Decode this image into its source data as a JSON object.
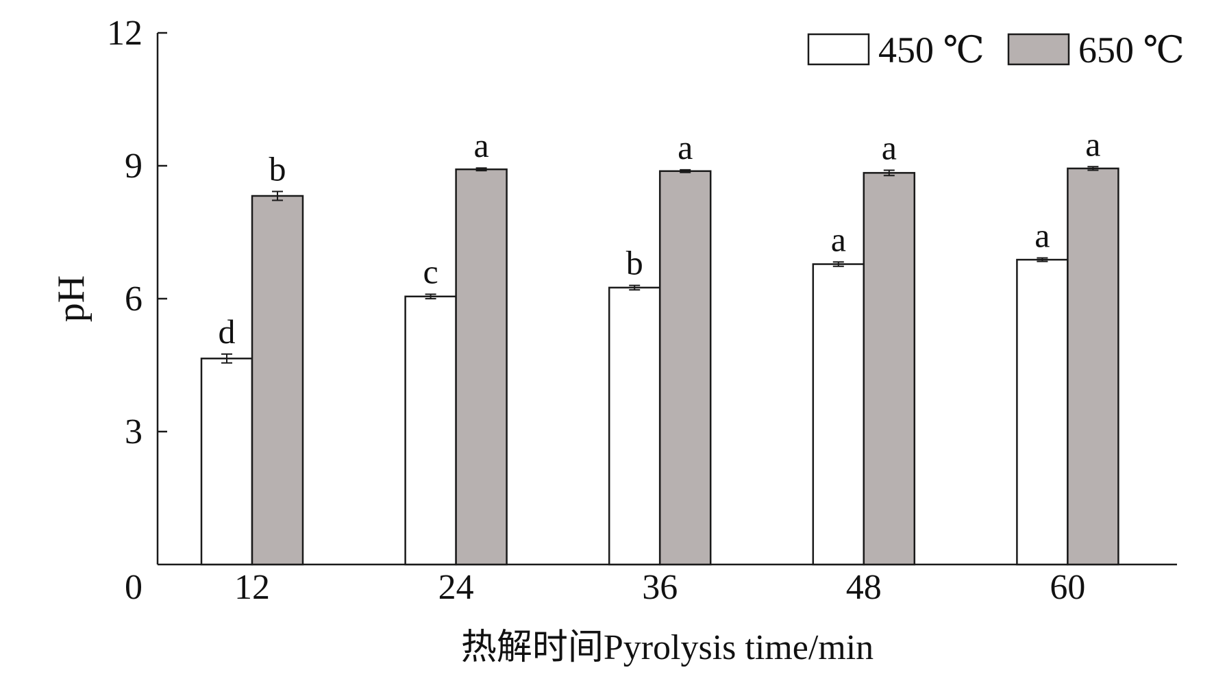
{
  "chart_data": {
    "type": "bar",
    "categories": [
      "12",
      "24",
      "36",
      "48",
      "60"
    ],
    "series": [
      {
        "name": "450 ℃",
        "values": [
          4.65,
          6.05,
          6.25,
          6.78,
          6.88
        ],
        "errors": [
          0.1,
          0.05,
          0.05,
          0.05,
          0.04
        ],
        "letters": [
          "d",
          "c",
          "b",
          "a",
          "a"
        ]
      },
      {
        "name": "650 ℃",
        "values": [
          8.32,
          8.92,
          8.88,
          8.84,
          8.94
        ],
        "errors": [
          0.1,
          0.03,
          0.03,
          0.06,
          0.04
        ],
        "letters": [
          "b",
          "a",
          "a",
          "a",
          "a"
        ]
      }
    ],
    "xlabel": "热解时间Pyrolysis time/min",
    "ylabel": "pH",
    "ylim": [
      0,
      12
    ],
    "yticks": [
      0,
      3,
      6,
      9,
      12
    ],
    "legend_position": "top-right",
    "grid": false,
    "colors": {
      "series_450": "#ffffff",
      "series_650": "#b7b1b0",
      "stroke": "#1a1a1a"
    }
  }
}
